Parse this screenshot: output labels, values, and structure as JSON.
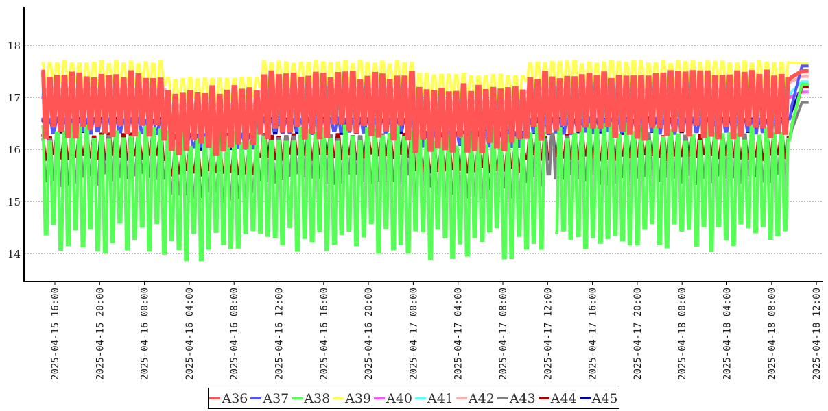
{
  "chart_data": {
    "type": "line",
    "title": "",
    "xlabel": "",
    "ylabel": "",
    "ylim": [
      13.47,
      18.74
    ],
    "yticks": [
      "14",
      "15",
      "16",
      "17",
      "18"
    ],
    "xticks": [
      "2025-04-15 16:00",
      "2025-04-15 20:00",
      "2025-04-16 00:00",
      "2025-04-16 04:00",
      "2025-04-16 08:00",
      "2025-04-16 12:00",
      "2025-04-16 16:00",
      "2025-04-16 20:00",
      "2025-04-17 00:00",
      "2025-04-17 04:00",
      "2025-04-17 08:00",
      "2025-04-17 12:00",
      "2025-04-17 16:00",
      "2025-04-17 20:00",
      "2025-04-18 00:00",
      "2025-04-18 04:00",
      "2025-04-18 08:00",
      "2025-04-18 12:00"
    ],
    "x_range_hours_from_first_tick": [
      -1.2,
      67.3
    ],
    "sample_interval_hours": 0.33,
    "grid": "horizontal dotted",
    "legend_placement": "bottom-center",
    "series": [
      {
        "name": "A39",
        "color": "#ffff55",
        "low": 17.2,
        "high": 17.7,
        "end": 17.65
      },
      {
        "name": "A42",
        "color": "#ffafaf",
        "low": 17.1,
        "high": 17.3,
        "end": 17.4
      },
      {
        "name": "A41",
        "color": "#55ffff",
        "low": 16.95,
        "high": 17.05,
        "end": 17.3
      },
      {
        "name": "A40",
        "color": "#ff55ff",
        "low": 16.9,
        "high": 17.0,
        "end": 17.1
      },
      {
        "name": "A45",
        "color": "#0000a0",
        "low": 16.3,
        "high": 16.6,
        "end": 17.2
      },
      {
        "name": "A37",
        "color": "#5555ff",
        "low": 16.3,
        "high": 16.6,
        "end": 17.6
      },
      {
        "name": "A44",
        "color": "#b00000",
        "low": 15.8,
        "high": 16.3,
        "end": 17.2
      },
      {
        "name": "A43",
        "color": "#808080",
        "low": 15.3,
        "high": 16.3,
        "end": 16.9
      },
      {
        "name": "A38",
        "color": "#55ff55",
        "low": 14.0,
        "high": 16.5,
        "end": 17.25
      },
      {
        "name": "A36",
        "color": "#ff5555",
        "low": 16.2,
        "high": 17.5,
        "end": 17.5
      }
    ]
  },
  "legend": [
    {
      "label": "A36",
      "color": "#ff5555"
    },
    {
      "label": "A37",
      "color": "#5555ff"
    },
    {
      "label": "A38",
      "color": "#55ff55"
    },
    {
      "label": "A39",
      "color": "#ffff55"
    },
    {
      "label": "A40",
      "color": "#ff55ff"
    },
    {
      "label": "A41",
      "color": "#55ffff"
    },
    {
      "label": "A42",
      "color": "#ffafaf"
    },
    {
      "label": "A43",
      "color": "#808080"
    },
    {
      "label": "A44",
      "color": "#b00000"
    },
    {
      "label": "A45",
      "color": "#0000a0"
    }
  ]
}
